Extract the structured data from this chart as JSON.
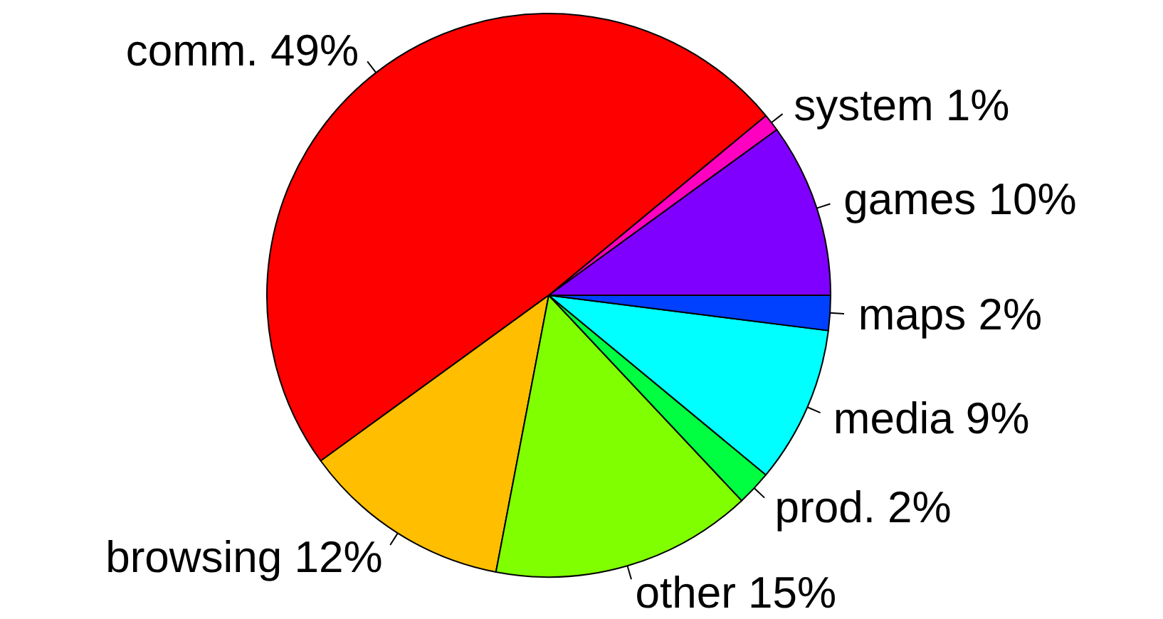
{
  "chart_data": {
    "type": "pie",
    "categories": [
      "games",
      "system",
      "comm.",
      "browsing",
      "other",
      "prod.",
      "media",
      "maps"
    ],
    "values": [
      10,
      1,
      49,
      12,
      15,
      2,
      9,
      2
    ],
    "value_labels": [
      "10%",
      "1%",
      "49%",
      "12%",
      "15%",
      "2%",
      "9%",
      "2%"
    ],
    "colors": [
      "#8000ff",
      "#ff00c0",
      "#ff0000",
      "#ffbf00",
      "#80ff00",
      "#00ff40",
      "#00ffff",
      "#0040ff"
    ],
    "legend": false
  }
}
